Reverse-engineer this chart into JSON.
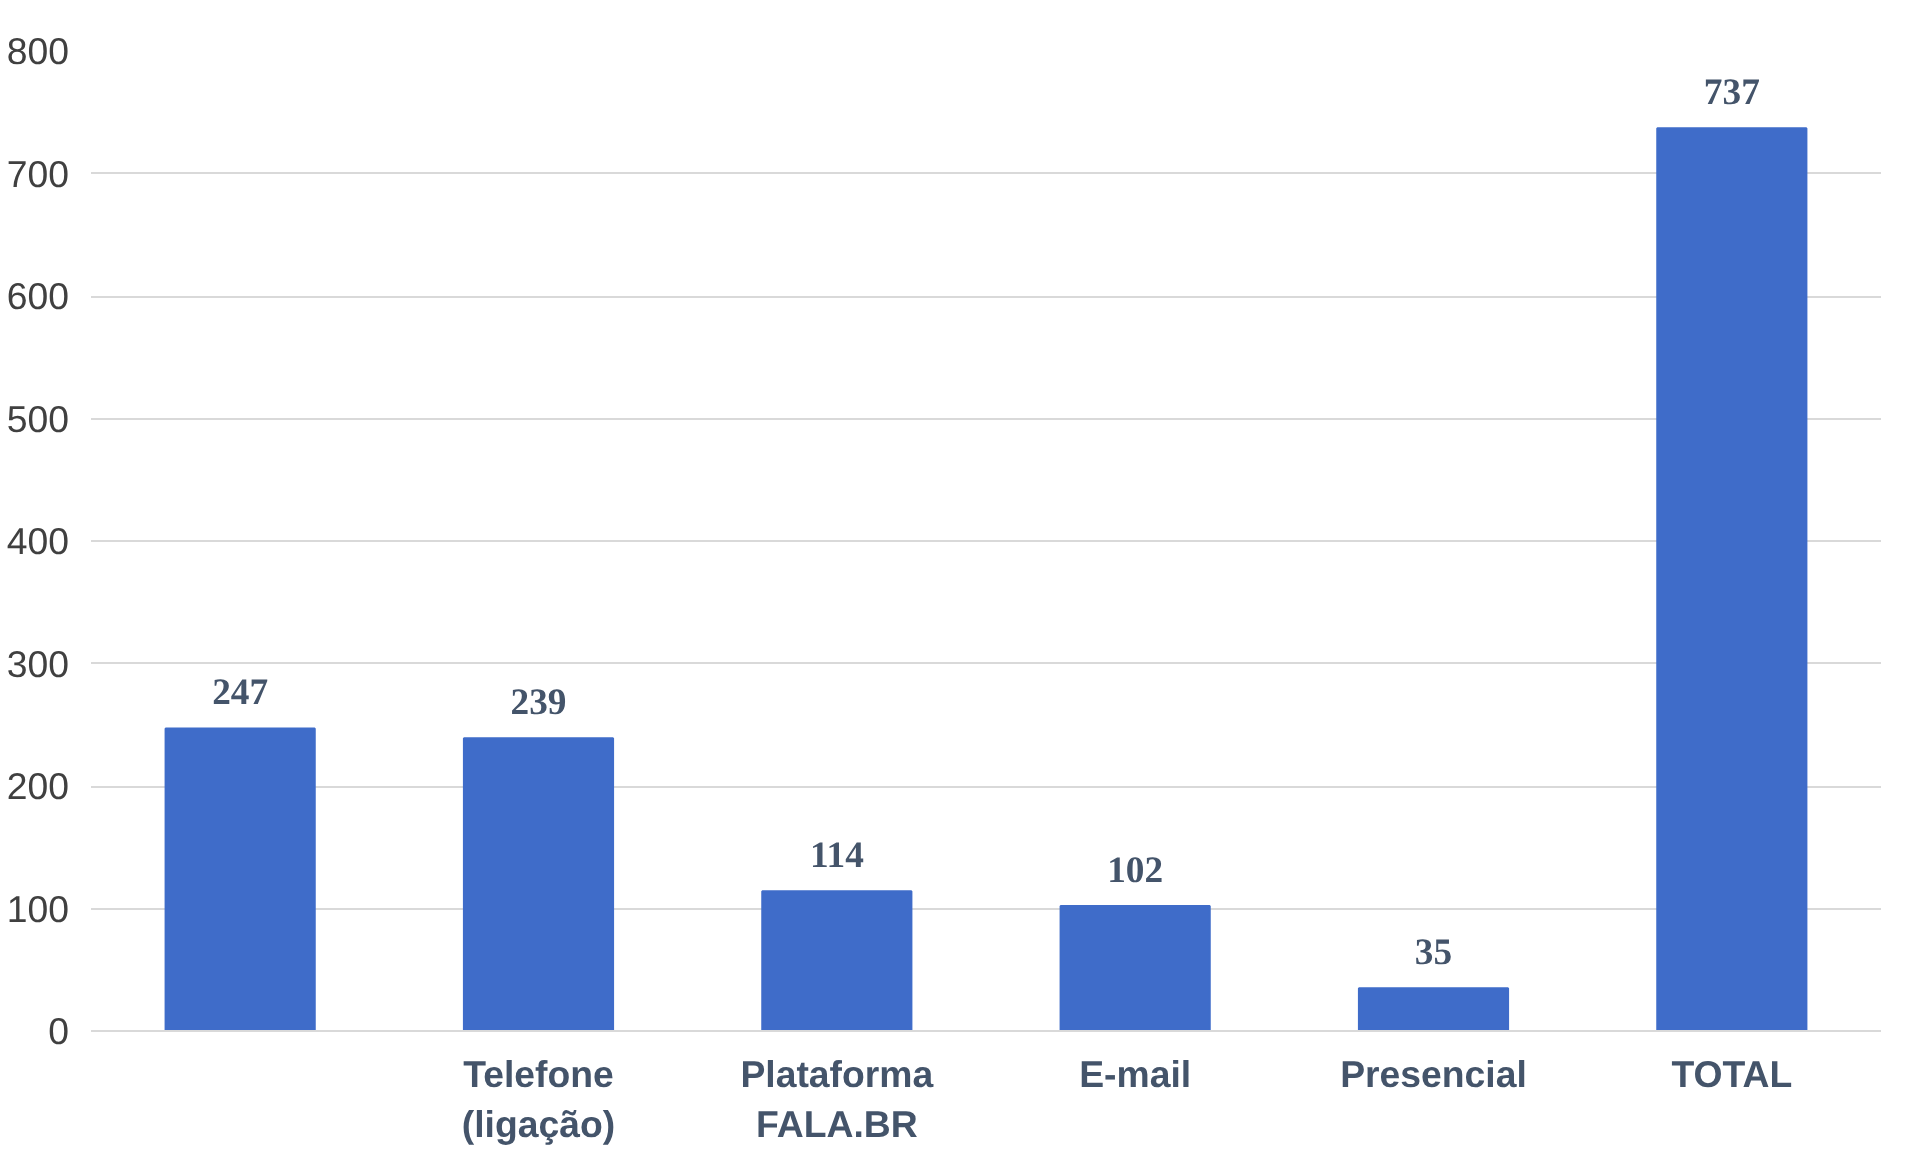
{
  "chart_data": {
    "type": "bar",
    "categories": [
      null,
      "Telefone\n(ligação)",
      "Plataforma\nFALA.BR",
      "E-mail",
      "Presencial",
      "TOTAL"
    ],
    "values": [
      247,
      239,
      114,
      102,
      35,
      737
    ],
    "color": "#3f6cc9",
    "ylim": [
      0,
      800
    ],
    "yticks": [
      0,
      100,
      200,
      300,
      400,
      500,
      600,
      700,
      800
    ],
    "grid": "y",
    "data_labels": true
  }
}
